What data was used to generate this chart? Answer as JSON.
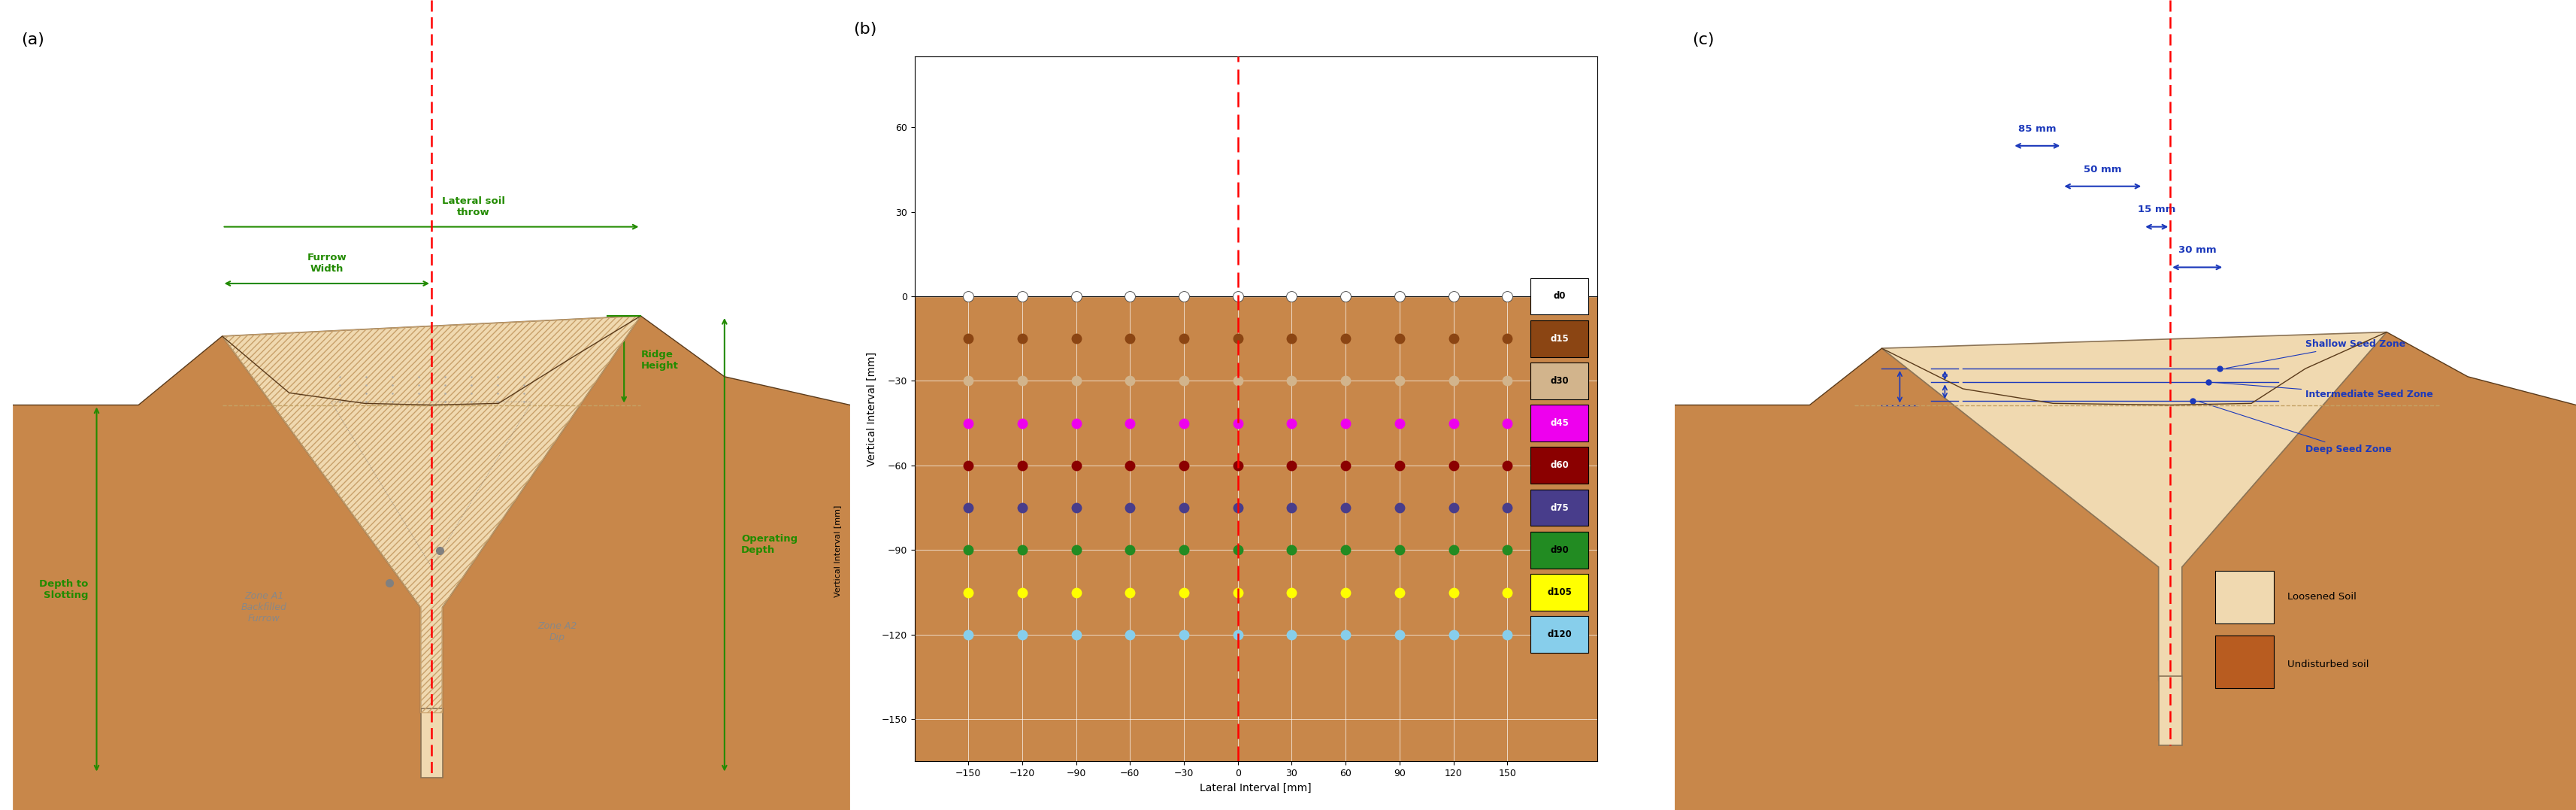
{
  "fig_width": 34.27,
  "fig_height": 10.77,
  "soil_color": "#C8874A",
  "loosened_color": "#F0D9B0",
  "hatch_color": "#C8A06A",
  "green": "#228B00",
  "blue": "#1C39BB",
  "red": "#CC0000",
  "panel_b": {
    "x_values": [
      -150,
      -120,
      -90,
      -60,
      -30,
      0,
      30,
      60,
      90,
      120,
      150
    ],
    "depth_y": [
      0,
      -15,
      -30,
      -45,
      -60,
      -75,
      -90,
      -105,
      -120
    ],
    "depth_labels": [
      "d0",
      "d15",
      "d30",
      "d45",
      "d60",
      "d75",
      "d90",
      "d105",
      "d120"
    ],
    "depth_colors": [
      "#FFFFFF",
      "#8B4513",
      "#D2B48C",
      "#EE00EE",
      "#8B0000",
      "#483D8B",
      "#228B22",
      "#FFFF00",
      "#87CEEB"
    ],
    "depth_text_colors": [
      "#000000",
      "#FFFFFF",
      "#000000",
      "#FFFFFF",
      "#FFFFFF",
      "#FFFFFF",
      "#000000",
      "#000000",
      "#000000"
    ],
    "xlabel": "Lateral Interval [mm]",
    "ylabel": "Vertical Interval [mm]",
    "xlim": [
      -180,
      200
    ],
    "ylim": [
      -165,
      85
    ],
    "x_ticks": [
      -150,
      -120,
      -90,
      -60,
      -30,
      0,
      30,
      60,
      90,
      120,
      150
    ],
    "y_ticks": [
      60,
      30,
      0,
      -30,
      -60,
      -90,
      -120,
      -150
    ]
  }
}
